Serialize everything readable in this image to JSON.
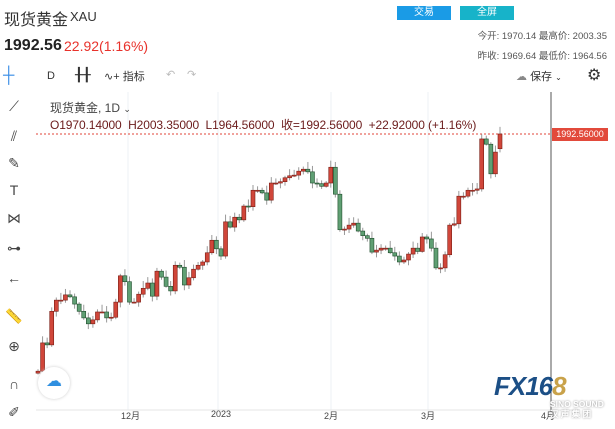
{
  "header": {
    "title": "现货黄金",
    "symbol": "XAU",
    "price": "1992.56",
    "change": "22.92(1.16%)",
    "trade_button": "交易",
    "fullscreen_button": "全屏",
    "stats": [
      {
        "label": "今开:",
        "value": "1970.14"
      },
      {
        "label": "最高价:",
        "value": "2003.35"
      },
      {
        "label": "昨收:",
        "value": "1969.64"
      },
      {
        "label": "最低价:",
        "value": "1964.56"
      }
    ]
  },
  "toolbar": {
    "interval": "D",
    "indicators": "指标",
    "save": "保存"
  },
  "legend": {
    "title": "现货黄金, 1D",
    "ohlc": "O1970.14000  H2003.35000  L1964.56000  收=1992.56000  +22.92000 (+1.16%)"
  },
  "price_label": "1992.56000",
  "x_labels": [
    "12月",
    "2023",
    "2月",
    "3月",
    "4月"
  ],
  "logo": {
    "text": "FX168",
    "sub": "SINO SOUND 汉 声 集 团"
  },
  "colors": {
    "up": "#d0463a",
    "down": "#5f9f73",
    "accent": "#1a9be6"
  },
  "chart_data": {
    "type": "candlestick",
    "closes": [
      1632,
      1675,
      1672,
      1723,
      1740,
      1740,
      1748,
      1745,
      1734,
      1723,
      1713,
      1704,
      1710,
      1722,
      1722,
      1713,
      1714,
      1737,
      1777,
      1768,
      1737,
      1737,
      1749,
      1758,
      1766,
      1746,
      1784,
      1775,
      1761,
      1754,
      1793,
      1790,
      1763,
      1774,
      1787,
      1793,
      1798,
      1812,
      1831,
      1818,
      1807,
      1859,
      1851,
      1866,
      1862,
      1883,
      1882,
      1907,
      1907,
      1903,
      1892,
      1918,
      1918,
      1920,
      1926,
      1929,
      1930,
      1936,
      1939,
      1935,
      1918,
      1917,
      1913,
      1918,
      1942,
      1901,
      1847,
      1848,
      1854,
      1857,
      1845,
      1838,
      1834,
      1813,
      1816,
      1819,
      1819,
      1812,
      1807,
      1798,
      1801,
      1810,
      1819,
      1814,
      1836,
      1833,
      1819,
      1789,
      1789,
      1809,
      1854,
      1856,
      1898,
      1898,
      1907,
      1907,
      1909,
      1985,
      1977,
      1932,
      1965,
      1992.56
    ],
    "last": {
      "open": 1970.14,
      "high": 2003.35,
      "low": 1964.56,
      "close": 1992.56
    }
  }
}
